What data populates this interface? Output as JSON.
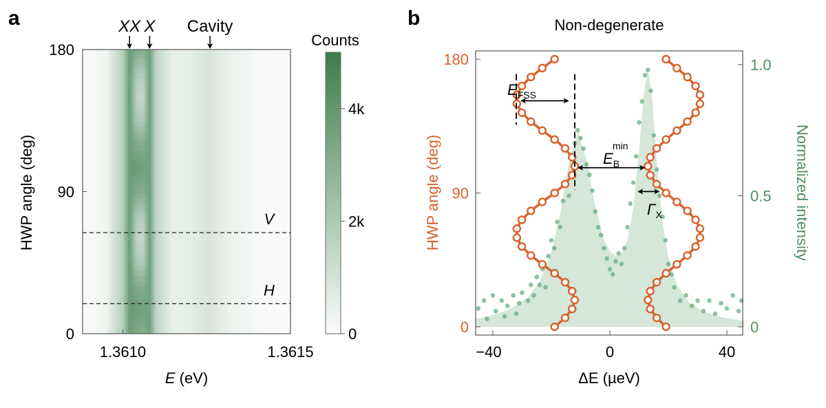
{
  "chart_data": [
    {
      "panel": "a",
      "type": "heatmap",
      "xlabel_italic": "E",
      "xlabel_unit": " (eV)",
      "ylabel": "HWP angle (deg)",
      "xlim": [
        1.36088,
        1.3615
      ],
      "ylim": [
        0,
        180
      ],
      "x_ticks": [
        1.361,
        1.3615
      ],
      "x_tick_labels": [
        "1.3610",
        "1.3615"
      ],
      "y_ticks": [
        0,
        90,
        180
      ],
      "y_tick_labels": [
        "0",
        "90",
        "180"
      ],
      "colorbar": {
        "title": "Counts",
        "range": [
          0,
          5000
        ],
        "ticks": [
          0,
          2000,
          4000
        ],
        "tick_labels": [
          "0",
          "2k",
          "4k"
        ],
        "color_low": "#fbfcfb",
        "color_high": "#3c7d4c"
      },
      "annotations": [
        {
          "text": "XX",
          "italic": true,
          "x": 1.36102
        },
        {
          "text": "X",
          "italic": true,
          "x": 1.36108
        },
        {
          "text": "Cavity",
          "italic": false,
          "x": 1.36126
        }
      ],
      "hlines": [
        {
          "label": "V",
          "y": 64
        },
        {
          "label": "H",
          "y": 19
        }
      ],
      "energies": [
        1.3609,
        1.36095,
        1.361,
        1.36102,
        1.36104,
        1.36106,
        1.36108,
        1.3611,
        1.36115,
        1.3612,
        1.36126,
        1.36132,
        1.3614,
        1.3615
      ],
      "angles": [
        0,
        15,
        30,
        45,
        60,
        75,
        90,
        105,
        120,
        135,
        150,
        165,
        180
      ],
      "counts": [
        [
          100,
          300,
          1800,
          3800,
          3240,
          3040,
          3600,
          1500,
          500,
          600,
          900,
          400,
          150,
          50
        ],
        [
          100,
          300,
          1800,
          3800,
          3800,
          3600,
          3600,
          1500,
          500,
          600,
          900,
          400,
          150,
          50
        ],
        [
          100,
          300,
          1800,
          3800,
          3240,
          3040,
          3600,
          1500,
          500,
          600,
          900,
          400,
          150,
          50
        ],
        [
          100,
          300,
          1800,
          3800,
          2120,
          1920,
          3600,
          1500,
          500,
          600,
          900,
          400,
          150,
          50
        ],
        [
          100,
          300,
          1800,
          3800,
          1560,
          1360,
          3600,
          1500,
          500,
          600,
          900,
          400,
          150,
          50
        ],
        [
          100,
          300,
          1800,
          3800,
          2120,
          1920,
          3600,
          1500,
          500,
          600,
          900,
          400,
          150,
          50
        ],
        [
          100,
          300,
          1800,
          3800,
          3240,
          3040,
          3600,
          1500,
          500,
          600,
          900,
          400,
          150,
          50
        ],
        [
          100,
          300,
          1800,
          3800,
          3800,
          3600,
          3600,
          1500,
          500,
          600,
          900,
          400,
          150,
          50
        ],
        [
          100,
          300,
          1800,
          3800,
          3240,
          3040,
          3600,
          1500,
          500,
          600,
          900,
          400,
          150,
          50
        ],
        [
          100,
          300,
          1800,
          3800,
          2120,
          1920,
          3600,
          1500,
          500,
          600,
          900,
          400,
          150,
          50
        ],
        [
          100,
          300,
          1800,
          3800,
          1560,
          1360,
          3600,
          1500,
          500,
          600,
          900,
          400,
          150,
          50
        ],
        [
          100,
          300,
          1800,
          3800,
          2120,
          1920,
          3600,
          1500,
          500,
          600,
          900,
          400,
          150,
          50
        ],
        [
          100,
          300,
          1800,
          3800,
          3240,
          3040,
          3600,
          1500,
          500,
          600,
          900,
          400,
          150,
          50
        ]
      ]
    },
    {
      "panel": "b",
      "type": "line+scatter+area",
      "title": "Non-degenerate",
      "xlabel": "ΔE (µeV)",
      "ylabel_left": "HWP angle (deg)",
      "ylabel_right": "Normalized intensity",
      "xlim": [
        -46,
        45.5
      ],
      "ylim_left": [
        0,
        180
      ],
      "ylim_right": [
        0,
        1.0
      ],
      "x_ticks": [
        -40,
        0,
        40
      ],
      "x_tick_labels": [
        "−40",
        "0",
        "40"
      ],
      "y_left_ticks": [
        0,
        90,
        180
      ],
      "y_left_tick_labels": [
        "0",
        "90",
        "180"
      ],
      "y_right_ticks": [
        0,
        0.5,
        1.0
      ],
      "y_right_tick_labels": [
        "0",
        "0.5",
        "1.0"
      ],
      "colors": {
        "angle_series": "#d9622b",
        "intensity": "#4f8f60",
        "intensity_fill": "#d4e7d9",
        "intensity_points": "#5fa877"
      },
      "angle_series": [
        {
          "angle": [
            0,
            6,
            12,
            18,
            24,
            30,
            36,
            42,
            48,
            54,
            60,
            66,
            72,
            78,
            84,
            90,
            96,
            102,
            108,
            114,
            120,
            126,
            132,
            138,
            144,
            150,
            156,
            162,
            168,
            174,
            180
          ],
          "dE": [
            -18.9,
            -15.3,
            -12.9,
            -12,
            -12.9,
            -15.3,
            -18.9,
            -23.1,
            -27,
            -30.1,
            -31.8,
            -31.8,
            -30.1,
            -27,
            -23.1,
            -18.9,
            -15.3,
            -12.9,
            -12,
            -12.9,
            -15.3,
            -18.9,
            -23.1,
            -27,
            -30.1,
            -31.8,
            -31.8,
            -30.1,
            -27,
            -23.1,
            -18.9
          ]
        },
        {
          "angle": [
            0,
            6,
            12,
            18,
            24,
            30,
            36,
            42,
            48,
            54,
            60,
            66,
            72,
            78,
            84,
            90,
            96,
            102,
            108,
            114,
            120,
            126,
            132,
            138,
            144,
            150,
            156,
            162,
            168,
            174,
            180
          ],
          "dE": [
            19.2,
            16,
            13.8,
            13,
            13.8,
            16,
            19.2,
            22.9,
            26.5,
            29.3,
            30.8,
            30.8,
            29.3,
            26.5,
            22.9,
            19.2,
            16,
            13.8,
            13,
            13.8,
            16,
            19.2,
            22.9,
            26.5,
            29.3,
            30.8,
            30.8,
            29.3,
            26.5,
            22.9,
            19.2
          ]
        }
      ],
      "intensity_fit": {
        "dE": [
          -46,
          -40,
          -34,
          -28,
          -24,
          -20,
          -17,
          -14,
          -11,
          -8,
          -5,
          -2,
          0,
          2,
          4,
          6,
          8,
          10,
          11.5,
          13,
          14.5,
          16,
          18,
          20,
          23,
          27,
          32,
          38,
          46
        ],
        "I": [
          0.03,
          0.045,
          0.068,
          0.113,
          0.173,
          0.285,
          0.43,
          0.63,
          0.745,
          0.64,
          0.46,
          0.33,
          0.29,
          0.27,
          0.28,
          0.33,
          0.45,
          0.67,
          0.88,
          0.986,
          0.866,
          0.64,
          0.4,
          0.264,
          0.157,
          0.094,
          0.058,
          0.037,
          0.022
        ]
      },
      "intensity_points": [
        [
          -45,
          0.07
        ],
        [
          -43,
          0.1
        ],
        [
          -42,
          0.03
        ],
        [
          -40,
          0.12
        ],
        [
          -39,
          0.06
        ],
        [
          -37,
          0.1
        ],
        [
          -36,
          0.04
        ],
        [
          -35,
          0.08
        ],
        [
          -33,
          0.12
        ],
        [
          -32,
          0.05
        ],
        [
          -31,
          0.09
        ],
        [
          -30,
          0.13
        ],
        [
          -28,
          0.1
        ],
        [
          -27,
          0.16
        ],
        [
          -26,
          0.12
        ],
        [
          -25,
          0.19
        ],
        [
          -24,
          0.16
        ],
        [
          -23,
          0.22
        ],
        [
          -22,
          0.15
        ],
        [
          -21,
          0.27
        ],
        [
          -20,
          0.33
        ],
        [
          -19,
          0.3
        ],
        [
          -18,
          0.4
        ],
        [
          -17,
          0.38
        ],
        [
          -16,
          0.48
        ],
        [
          -15,
          0.54
        ],
        [
          -14,
          0.5
        ],
        [
          -13,
          0.64
        ],
        [
          -12,
          0.7
        ],
        [
          -11,
          0.75
        ],
        [
          -10,
          0.72
        ],
        [
          -9,
          0.68
        ],
        [
          -8,
          0.62
        ],
        [
          -7,
          0.58
        ],
        [
          -6,
          0.52
        ],
        [
          -5,
          0.44
        ],
        [
          -4,
          0.38
        ],
        [
          -3,
          0.35
        ],
        [
          -2,
          0.3
        ],
        [
          -1,
          0.26
        ],
        [
          0,
          0.22
        ],
        [
          1,
          0.2
        ],
        [
          2,
          0.25
        ],
        [
          3,
          0.28
        ],
        [
          4,
          0.24
        ],
        [
          5,
          0.3
        ],
        [
          6,
          0.38
        ],
        [
          7,
          0.47
        ],
        [
          8,
          0.55
        ],
        [
          9,
          0.65
        ],
        [
          10,
          0.78
        ],
        [
          11,
          0.86
        ],
        [
          12,
          0.96
        ],
        [
          13,
          0.98
        ],
        [
          14,
          0.9
        ],
        [
          15,
          0.73
        ],
        [
          16,
          0.6
        ],
        [
          17,
          0.5
        ],
        [
          18,
          0.42
        ],
        [
          19,
          0.33
        ],
        [
          20,
          0.24
        ],
        [
          21,
          0.2
        ],
        [
          22,
          0.15
        ],
        [
          24,
          0.1
        ],
        [
          26,
          0.12
        ],
        [
          28,
          0.08
        ],
        [
          30,
          0.1
        ],
        [
          32,
          0.06
        ],
        [
          34,
          0.1
        ],
        [
          36,
          0.05
        ],
        [
          38,
          0.09
        ],
        [
          40,
          0.07
        ],
        [
          42,
          0.12
        ],
        [
          44,
          0.06
        ],
        [
          45,
          0.1
        ]
      ],
      "annotations": {
        "efss": {
          "main": "E",
          "sub": "FSS",
          "from": -31,
          "to": -13.5,
          "angle": 152
        },
        "eb": {
          "main": "E",
          "sub": "B",
          "sup": "min",
          "from": -11.5,
          "to": 12.5,
          "angle": 107
        },
        "gamma": {
          "main": "Γ",
          "sub": "X",
          "from": 9,
          "to": 17.5,
          "angle": 91
        }
      },
      "dashed_vlines": [
        {
          "dE": -32,
          "from": 136,
          "to": 170
        },
        {
          "dE": -12,
          "from": 92,
          "to": 170
        }
      ]
    }
  ],
  "labels": {
    "panel_a": "a",
    "panel_b": "b"
  }
}
